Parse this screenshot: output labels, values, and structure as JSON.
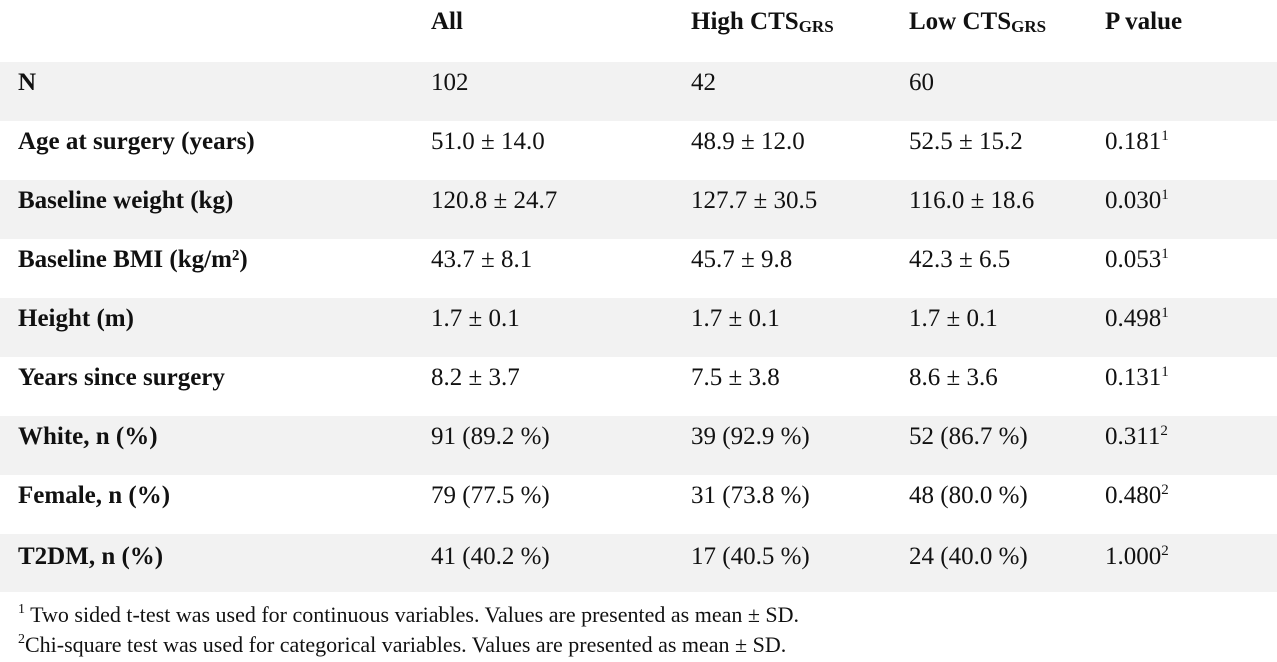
{
  "header": {
    "col_all": "All",
    "col_high_main": "High CTS",
    "col_high_sub": "GRS",
    "col_low_main": "Low CTS",
    "col_low_sub": "GRS",
    "col_p": "P value"
  },
  "rows": [
    {
      "label": "N",
      "all": "102",
      "high": "42",
      "low": "60",
      "p": "",
      "p_mark": ""
    },
    {
      "label": "Age at surgery (years)",
      "all": "51.0 ± 14.0",
      "high": "48.9 ± 12.0",
      "low": "52.5 ± 15.2",
      "p": "0.181",
      "p_mark": "1"
    },
    {
      "label": "Baseline weight (kg)",
      "all": "120.8 ± 24.7",
      "high": "127.7 ± 30.5",
      "low": "116.0 ± 18.6",
      "p": "0.030",
      "p_mark": "1"
    },
    {
      "label": "Baseline BMI (kg/m²)",
      "all": "43.7 ± 8.1",
      "high": "45.7 ± 9.8",
      "low": "42.3 ± 6.5",
      "p": "0.053",
      "p_mark": "1"
    },
    {
      "label": "Height (m)",
      "all": "1.7 ± 0.1",
      "high": "1.7 ± 0.1",
      "low": "1.7 ± 0.1",
      "p": "0.498",
      "p_mark": "1"
    },
    {
      "label": "Years since surgery",
      "all": "8.2 ± 3.7",
      "high": "7.5 ± 3.8",
      "low": "8.6 ± 3.6",
      "p": "0.131",
      "p_mark": "1"
    },
    {
      "label": "White, n (%)",
      "all": "91 (89.2 %)",
      "high": "39 (92.9 %)",
      "low": "52 (86.7 %)",
      "p": "0.311",
      "p_mark": "2"
    },
    {
      "label": "Female, n (%)",
      "all": "79 (77.5 %)",
      "high": "31 (73.8 %)",
      "low": "48 (80.0 %)",
      "p": "0.480",
      "p_mark": "2"
    },
    {
      "label": "T2DM, n (%)",
      "all": "41 (40.2 %)",
      "high": "17 (40.5 %)",
      "low": "24 (40.0 %)",
      "p": "1.000",
      "p_mark": "2"
    }
  ],
  "footnotes": [
    {
      "mark": "1",
      "text": " Two sided t-test was used for continuous variables. Values are presented as mean ± SD."
    },
    {
      "mark": "2",
      "text": "Chi-square test was used for categorical variables. Values are presented as mean ± SD."
    }
  ],
  "colors": {
    "shaded_row": "#f2f2f2",
    "text": "#111111",
    "background": "#ffffff"
  }
}
